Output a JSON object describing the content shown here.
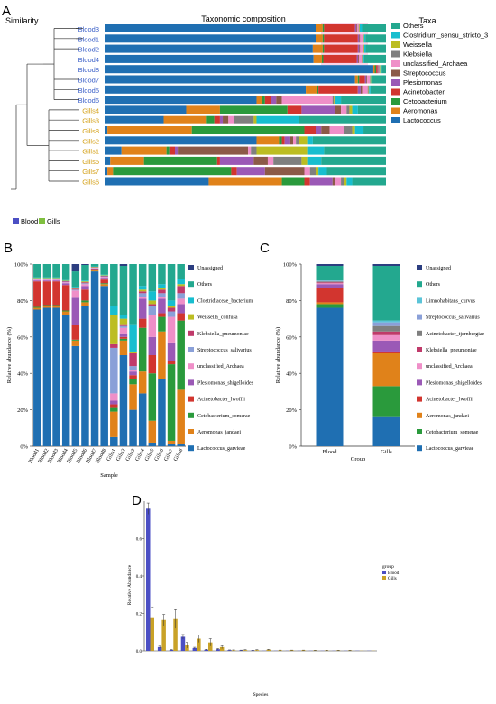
{
  "colors": {
    "Lactococcus": "#1f6fb2",
    "Aeromonas": "#e0821a",
    "Cetobacterium": "#2a9a3c",
    "Acinetobacter": "#d2352f",
    "Plesiomonas": "#9b59b6",
    "Streptococcus": "#8c5a48",
    "unclassified_Archaea": "#ef8fc8",
    "Klebsiella": "#7f7f7f",
    "Weissella": "#bcbd22",
    "Clostridium": "#17becf",
    "Others": "#23a88f",
    "Unassigned": "#2c3e80",
    "Limno": "#5bc4d8",
    "highlight": "#f7b8d8"
  },
  "chart_data": [
    {
      "panel": "A",
      "type": "bar",
      "orientation": "horizontal",
      "stacked": true,
      "title": "Taxonomic composition",
      "left_title": "Similarity",
      "legend_title": "Taxa",
      "group_legend": [
        "Blood",
        "Gills"
      ],
      "taxa": [
        "Others",
        "Clostridium_sensu_stricto_3",
        "Weissella",
        "Klebsiella",
        "unclassified_Archaea",
        "Streptococcus",
        "Plesiomonas",
        "Acinetobacter",
        "Cetobacterium",
        "Aeromonas",
        "Lactococcus"
      ],
      "series_order": [
        "Lactococcus",
        "Aeromonas",
        "Cetobacterium",
        "Acinetobacter",
        "Plesiomonas",
        "Streptococcus",
        "unclassified_Archaea",
        "Klebsiella",
        "Weissella",
        "Clostridium",
        "Others"
      ],
      "samples": [
        {
          "name": "Blood3",
          "group": "Blood",
          "values": [
            0.75,
            0.025,
            0.005,
            0.11,
            0.005,
            0.003,
            0.005,
            0.002,
            0.002,
            0.008,
            0.085
          ]
        },
        {
          "name": "Blood1",
          "group": "Blood",
          "values": [
            0.75,
            0.025,
            0.005,
            0.12,
            0.005,
            0.003,
            0.01,
            0.002,
            0.002,
            0.005,
            0.073
          ]
        },
        {
          "name": "Blood2",
          "group": "Blood",
          "values": [
            0.74,
            0.035,
            0.005,
            0.12,
            0.005,
            0.003,
            0.01,
            0.003,
            0.002,
            0.005,
            0.072
          ]
        },
        {
          "name": "Blood4",
          "group": "Blood",
          "values": [
            0.75,
            0.03,
            0.005,
            0.12,
            0.005,
            0.003,
            0.01,
            0.002,
            0.002,
            0.005,
            0.078
          ]
        },
        {
          "name": "Blood8",
          "group": "Blood",
          "values": [
            0.955,
            0.005,
            0.005,
            0.005,
            0.002,
            0.002,
            0.002,
            0.002,
            0.002,
            0.005,
            0.015
          ]
        },
        {
          "name": "Blood7",
          "group": "Blood",
          "values": [
            0.89,
            0.01,
            0.005,
            0.02,
            0.005,
            0.003,
            0.01,
            0.002,
            0.002,
            0.005,
            0.048
          ]
        },
        {
          "name": "Blood5",
          "group": "Blood",
          "values": [
            0.715,
            0.04,
            0.005,
            0.14,
            0.01,
            0.005,
            0.02,
            0.003,
            0.002,
            0.005,
            0.055
          ]
        },
        {
          "name": "Blood6",
          "group": "Blood",
          "values": [
            0.54,
            0.02,
            0.01,
            0.02,
            0.02,
            0.02,
            0.18,
            0.005,
            0.005,
            0.02,
            0.16
          ]
        },
        {
          "name": "Gills4",
          "group": "Gills",
          "values": [
            0.29,
            0.12,
            0.24,
            0.05,
            0.12,
            0.02,
            0.02,
            0.01,
            0.01,
            0.02,
            0.1
          ]
        },
        {
          "name": "Gills3",
          "group": "Gills",
          "values": [
            0.21,
            0.15,
            0.03,
            0.02,
            0.01,
            0.02,
            0.02,
            0.07,
            0.01,
            0.15,
            0.31
          ]
        },
        {
          "name": "Gills8",
          "group": "Gills",
          "values": [
            0.01,
            0.3,
            0.4,
            0.04,
            0.02,
            0.03,
            0.05,
            0.03,
            0.01,
            0.03,
            0.08
          ]
        },
        {
          "name": "Gills2",
          "group": "Gills",
          "values": [
            0.54,
            0.08,
            0.01,
            0.01,
            0.02,
            0.01,
            0.01,
            0.01,
            0.03,
            0.02,
            0.26
          ]
        },
        {
          "name": "Gills1",
          "group": "Gills",
          "values": [
            0.06,
            0.16,
            0.01,
            0.02,
            0.01,
            0.25,
            0.01,
            0.02,
            0.18,
            0.06,
            0.22
          ]
        },
        {
          "name": "Gills5",
          "group": "Gills",
          "values": [
            0.02,
            0.12,
            0.26,
            0.01,
            0.12,
            0.05,
            0.02,
            0.1,
            0.02,
            0.05,
            0.23
          ]
        },
        {
          "name": "Gills7",
          "group": "Gills",
          "values": [
            0.01,
            0.02,
            0.42,
            0.02,
            0.1,
            0.14,
            0.02,
            0.02,
            0.01,
            0.03,
            0.21
          ]
        },
        {
          "name": "Gills6",
          "group": "Gills",
          "values": [
            0.37,
            0.26,
            0.08,
            0.02,
            0.08,
            0.01,
            0.02,
            0.01,
            0.01,
            0.02,
            0.12
          ]
        }
      ]
    },
    {
      "panel": "B",
      "type": "bar",
      "stacked": true,
      "xlabel": "Sample",
      "ylabel": "Relative abundance (%)",
      "ylim": [
        0,
        100
      ],
      "yticks": [
        "0%",
        "20%",
        "40%",
        "60%",
        "80%",
        "100%"
      ],
      "legend": [
        "Unassigned",
        "Others",
        "Clostridiaceae_bacterium",
        "Weissella_confusa",
        "Klebsiella_pneumoniae",
        "Streptococcus_salivarius",
        "unclassified_Archaea",
        "Plesiomonas_shigelloides",
        "Acinetobacter_lwoffii",
        "Cetobacterium_somerae",
        "Aeromonas_jandaei",
        "Lactococcus_garvieae"
      ],
      "series_order": [
        "Lactococcus_garvieae",
        "Aeromonas_jandaei",
        "Cetobacterium_somerae",
        "Acinetobacter_lwoffii",
        "Plesiomonas_shigelloides",
        "unclassified_Archaea",
        "Streptococcus_salivarius",
        "Klebsiella_pneumoniae",
        "Weissella_confusa",
        "Clostridiaceae_bacterium",
        "Others",
        "Unassigned"
      ],
      "categories": [
        "Blood1",
        "Blood2",
        "Blood3",
        "Blood4",
        "Blood5",
        "Blood6",
        "Blood7",
        "Blood8",
        "Gills1",
        "Gills2",
        "Gills3",
        "Gills4",
        "Gills5",
        "Gills6",
        "Gills7",
        "Gills8"
      ],
      "values": [
        [
          75,
          1,
          0.5,
          14,
          0.5,
          0.5,
          0.3,
          0.3,
          0.3,
          0.3,
          7.3,
          0
        ],
        [
          76,
          1,
          0.5,
          13,
          0.5,
          0.5,
          0.3,
          0.3,
          0.3,
          0.3,
          7.3,
          0
        ],
        [
          76,
          1,
          0.5,
          13,
          0.5,
          0.5,
          0.3,
          0.3,
          0.3,
          0.3,
          7.3,
          0
        ],
        [
          72,
          2,
          0.5,
          14,
          1,
          0.5,
          0.3,
          0.3,
          0.3,
          0.3,
          8.8,
          0
        ],
        [
          55,
          3,
          0.5,
          8,
          15,
          4,
          0.5,
          0.5,
          0.5,
          0.5,
          8.5,
          4
        ],
        [
          77,
          2,
          1,
          6,
          2,
          1,
          0.5,
          0.5,
          0.5,
          0.5,
          8.5,
          0.5
        ],
        [
          96,
          0.5,
          0.3,
          0.5,
          0.3,
          0.3,
          0.2,
          0.2,
          0.2,
          0.2,
          1.3,
          0
        ],
        [
          88,
          1,
          0.5,
          2,
          1,
          0.5,
          0.3,
          0.3,
          0.3,
          0.3,
          5.8,
          0
        ],
        [
          5,
          14,
          2,
          2,
          2,
          4,
          25,
          2,
          16,
          5,
          23,
          0
        ],
        [
          50,
          8,
          1,
          1,
          2,
          3,
          1,
          1,
          3,
          2,
          27,
          1
        ],
        [
          20,
          14,
          3,
          2,
          2,
          1,
          2,
          7,
          1,
          15,
          33,
          0
        ],
        [
          29,
          12,
          24,
          5,
          11,
          1,
          2,
          1,
          1,
          2,
          12,
          0
        ],
        [
          2,
          12,
          26,
          10,
          10,
          12,
          5,
          1,
          2,
          5,
          15,
          0
        ],
        [
          37,
          26,
          8,
          2,
          8,
          1,
          2,
          2,
          1,
          2,
          11,
          0
        ],
        [
          1,
          2,
          42,
          2,
          10,
          14,
          3,
          2,
          1,
          3,
          20,
          0
        ],
        [
          1,
          30,
          38,
          4,
          5,
          3,
          3,
          4,
          1,
          3,
          8,
          0
        ]
      ]
    },
    {
      "panel": "C",
      "type": "bar",
      "stacked": true,
      "xlabel": "Group",
      "ylabel": "Relative abundance (%)",
      "ylim": [
        0,
        100
      ],
      "yticks": [
        "0%",
        "20%",
        "40%",
        "60%",
        "80%",
        "100%"
      ],
      "legend": [
        "Unassigned",
        "Others",
        "Limnohabitans_curvus",
        "Streptococcus_salivarius",
        "Acinetobacter_tjernbergiae",
        "Klebsiella_pneumoniae",
        "unclassified_Archaea",
        "Plesiomonas_shigelloides",
        "Acinetobacter_lwoffii",
        "Aeromonas_jandaei",
        "Cetobacterium_somerae",
        "Lactococcus_garvieae"
      ],
      "series_order": [
        "Lactococcus_garvieae",
        "Cetobacterium_somerae",
        "Aeromonas_jandaei",
        "Acinetobacter_lwoffii",
        "Plesiomonas_shigelloides",
        "unclassified_Archaea",
        "Klebsiella_pneumoniae",
        "Acinetobacter_tjernbergiae",
        "Streptococcus_salivarius",
        "Limnohabitans_curvus",
        "Others",
        "Unassigned"
      ],
      "categories": [
        "Blood",
        "Gills"
      ],
      "values": [
        [
          76,
          2,
          1,
          8,
          2,
          0.5,
          0.5,
          0.5,
          0.3,
          0.2,
          8,
          1
        ],
        [
          16,
          17,
          18,
          1,
          6,
          3,
          2,
          3,
          2,
          1,
          30,
          1
        ]
      ]
    },
    {
      "panel": "D",
      "type": "bar",
      "grouped": true,
      "xlabel": "Species",
      "ylabel": "Relative Abundance",
      "ylim": [
        0,
        0.8
      ],
      "yticks": [
        "0.0",
        "0.2",
        "0.4",
        "0.6"
      ],
      "legend_title": "group",
      "series": [
        {
          "name": "Blood",
          "color": "#4b4fc4",
          "values": [
            0.76,
            0.02,
            0.005,
            0.075,
            0.015,
            0.006,
            0.009,
            0.004,
            0.003,
            0.002,
            0.001,
            0.001,
            0.001,
            0.001,
            0.001,
            0.001,
            0.001,
            0.001,
            0.001,
            0.001
          ],
          "errors": [
            0.03,
            0.005,
            0.002,
            0.012,
            0.004,
            0.002,
            0.003,
            0.001,
            0.001,
            0.001,
            0,
            0,
            0,
            0,
            0,
            0,
            0,
            0,
            0,
            0
          ]
        },
        {
          "name": "Gills",
          "color": "#c9a227",
          "values": [
            0.175,
            0.165,
            0.17,
            0.03,
            0.065,
            0.045,
            0.02,
            0.003,
            0.004,
            0.004,
            0.006,
            0.003,
            0.003,
            0.003,
            0.002,
            0.002,
            0.002,
            0.002,
            0.001,
            0.001
          ],
          "errors": [
            0.06,
            0.03,
            0.05,
            0.015,
            0.02,
            0.02,
            0.008,
            0.002,
            0.002,
            0.002,
            0.002,
            0.001,
            0.001,
            0.001,
            0.001,
            0.001,
            0.001,
            0.001,
            0,
            0
          ]
        }
      ]
    }
  ],
  "panel_labels": {
    "a": "A",
    "b": "B",
    "c": "C",
    "d": "D"
  }
}
